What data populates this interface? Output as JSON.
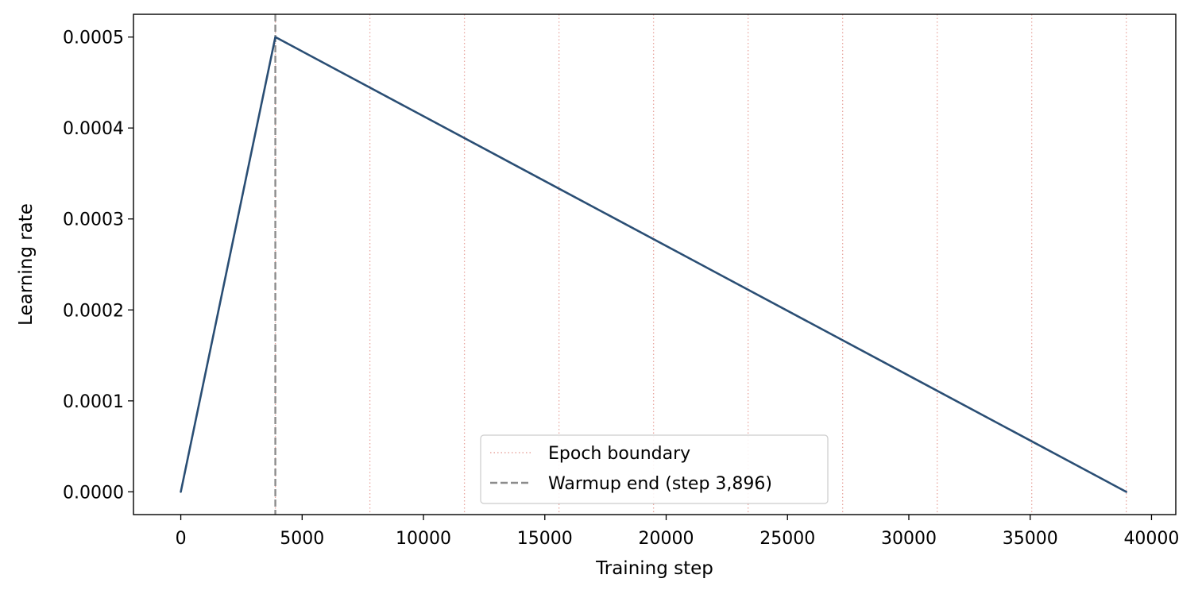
{
  "chart_data": {
    "type": "line",
    "title": "",
    "xlabel": "Training step",
    "ylabel": "Learning rate",
    "xlim": [
      -1950,
      41000
    ],
    "ylim": [
      -2.5e-05,
      0.000525
    ],
    "xticks": [
      0,
      5000,
      10000,
      15000,
      20000,
      25000,
      30000,
      35000,
      40000
    ],
    "xtick_labels": [
      "0",
      "5000",
      "10000",
      "15000",
      "20000",
      "25000",
      "30000",
      "35000",
      "40000"
    ],
    "yticks": [
      0,
      0.0001,
      0.0002,
      0.0003,
      0.0004,
      0.0005
    ],
    "ytick_labels": [
      "0.0000",
      "0.0001",
      "0.0002",
      "0.0003",
      "0.0004",
      "0.0005"
    ],
    "grid": false,
    "series": [
      {
        "type": "line",
        "color": "#2a4e74",
        "x": [
          0,
          3896,
          38960
        ],
        "y": [
          0.0,
          0.0005,
          0.0
        ]
      }
    ],
    "vlines": [
      {
        "name": "Epoch boundary",
        "style": "dotted",
        "color": "#e8a7a0",
        "x": [
          3896,
          7792,
          11688,
          15584,
          19480,
          23376,
          27272,
          31168,
          35064,
          38960
        ]
      },
      {
        "name": "Warmup end (step 3,896)",
        "style": "dashed",
        "color": "#8c8c8c",
        "x": [
          3896
        ]
      }
    ],
    "legend": {
      "placement": "lower-center",
      "entries": [
        "Epoch boundary",
        "Warmup end (step 3,896)"
      ]
    }
  }
}
